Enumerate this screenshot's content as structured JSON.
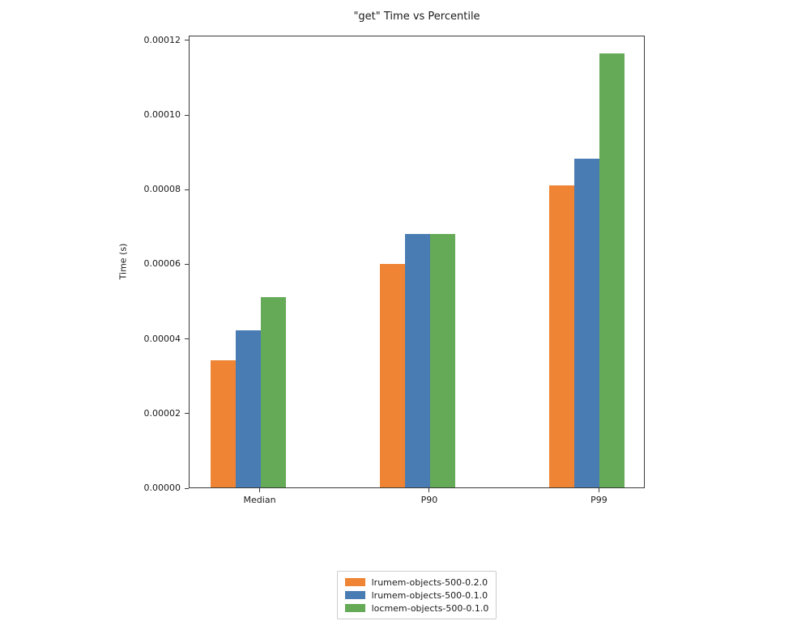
{
  "figure": {
    "background": "#ffffff",
    "spine_color": "#3a3a3a",
    "text_color": "#1a1a1a",
    "legend_border_color": "#cccccc"
  },
  "chart_data": {
    "type": "bar",
    "title": "\"get\" Time vs Percentile",
    "xlabel": "",
    "ylabel": "Time (s)",
    "categories": [
      "Median",
      "P90",
      "P99"
    ],
    "series": [
      {
        "name": "lrumem-objects-500-0.2.0",
        "color": "#ee8434",
        "values": [
          3.4e-05,
          6e-05,
          8.1e-05
        ]
      },
      {
        "name": "lrumem-objects-500-0.1.0",
        "color": "#4a7cb4",
        "values": [
          4.2e-05,
          6.8e-05,
          8.8e-05
        ]
      },
      {
        "name": "locmem-objects-500-0.1.0",
        "color": "#65aa57",
        "values": [
          5.1e-05,
          6.8e-05,
          0.0001163
        ]
      }
    ],
    "ylim": [
      0,
      0.0001213
    ],
    "yticks": [
      {
        "value": 0.0,
        "label": "0.00000"
      },
      {
        "value": 2e-05,
        "label": "0.00002"
      },
      {
        "value": 4e-05,
        "label": "0.00004"
      },
      {
        "value": 6e-05,
        "label": "0.00006"
      },
      {
        "value": 8e-05,
        "label": "0.00008"
      },
      {
        "value": 0.0001,
        "label": "0.00010"
      },
      {
        "value": 0.00012,
        "label": "0.00012"
      }
    ],
    "layout": {
      "xlim": [
        -0.418,
        2.27
      ],
      "bar_width_units": 0.148,
      "bar_slot_offsets": [
        -2,
        -1,
        0
      ],
      "grid": false,
      "legend_position": "below-center"
    }
  }
}
